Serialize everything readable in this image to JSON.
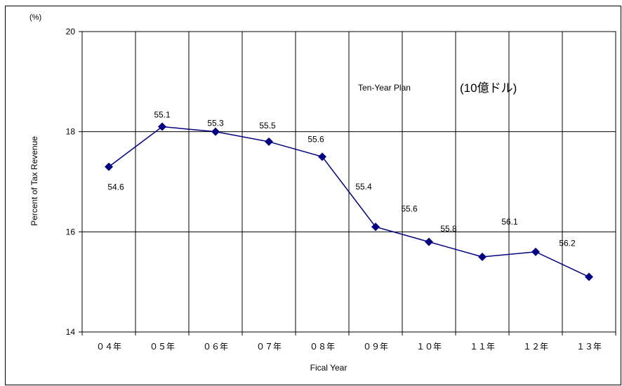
{
  "chart_data": {
    "type": "line",
    "unit_label": "(%)",
    "xlabel": "Fical Year",
    "ylabel": "Percent of Tax Revenue",
    "annotations": [
      "Ten-Year Plan",
      "(10億ドル)"
    ],
    "categories": [
      "０４年",
      "０５年",
      "０６年",
      "０７年",
      "０８年",
      "０９年",
      "１０年",
      "１１年",
      "１２年",
      "１３年"
    ],
    "ylim": [
      14,
      20
    ],
    "yticks": [
      14,
      16,
      18,
      20
    ],
    "grid": true,
    "series": [
      {
        "values": [
          17.3,
          18.1,
          18.0,
          17.8,
          17.5,
          16.1,
          15.8,
          15.5,
          15.6,
          15.1
        ],
        "data_labels": [
          "54.6",
          "55.1",
          "55.3",
          "55.5",
          "55.6",
          "55.4",
          "55.6",
          "55.8",
          "56.1",
          "56.2"
        ],
        "color": "#000080"
      }
    ]
  }
}
